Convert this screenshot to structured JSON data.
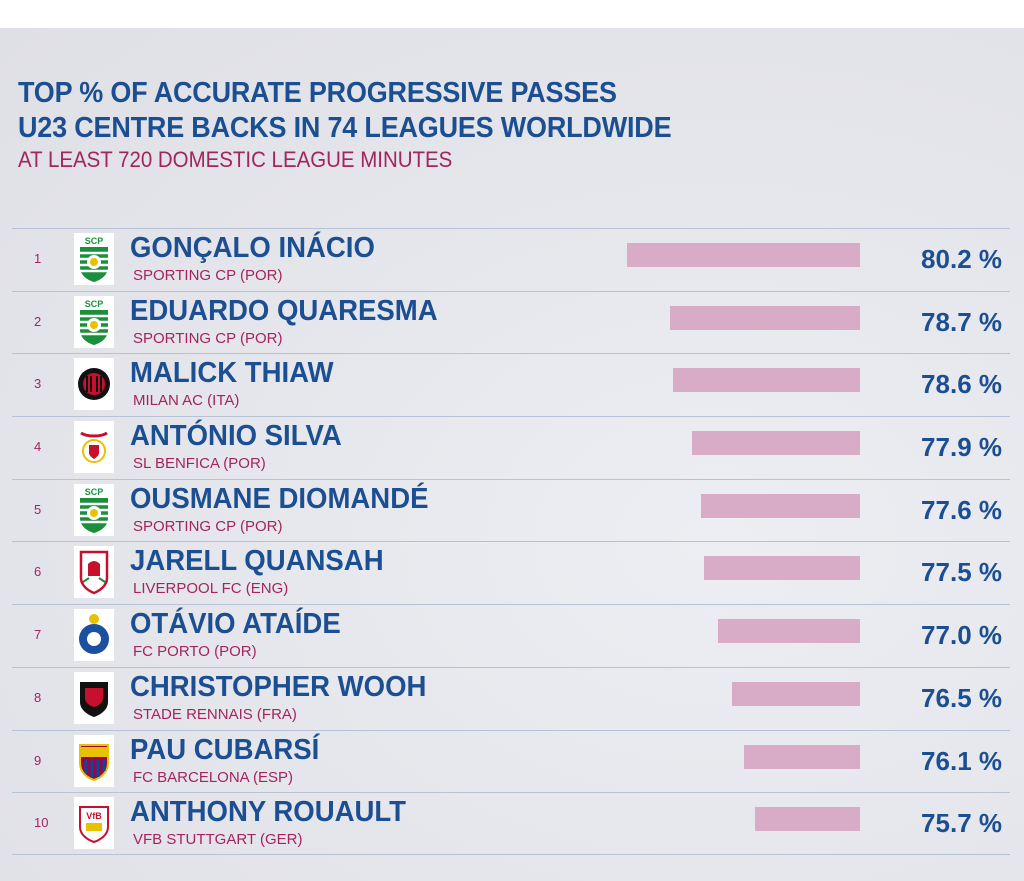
{
  "chart_data": {
    "type": "bar",
    "orientation": "horizontal",
    "title": "TOP % OF ACCURATE PROGRESSIVE PASSES",
    "title_line2": "U23 CENTRE BACKS IN 74 LEAGUES WORLDWIDE",
    "subtitle": "AT LEAST 720 DOMESTIC LEAGUE MINUTES",
    "xlim": [
      72,
      80.2
    ],
    "unit": "%",
    "colors": {
      "title": "#1b4f91",
      "subtitle": "#a3245e",
      "bar": "#d8abc6"
    },
    "rows": [
      {
        "rank": "1",
        "name": "GONÇALO INÁCIO",
        "club": "SPORTING CP (POR)",
        "value": 80.2,
        "label": "80.2 %",
        "logo": "sporting"
      },
      {
        "rank": "2",
        "name": "EDUARDO QUARESMA",
        "club": "SPORTING CP (POR)",
        "value": 78.7,
        "label": "78.7 %",
        "logo": "sporting"
      },
      {
        "rank": "3",
        "name": "MALICK THIAW",
        "club": "MILAN AC (ITA)",
        "value": 78.6,
        "label": "78.6 %",
        "logo": "milan"
      },
      {
        "rank": "4",
        "name": "ANTÓNIO SILVA",
        "club": "SL BENFICA (POR)",
        "value": 77.9,
        "label": "77.9 %",
        "logo": "benfica"
      },
      {
        "rank": "5",
        "name": "OUSMANE DIOMANDÉ",
        "club": "SPORTING CP (POR)",
        "value": 77.6,
        "label": "77.6 %",
        "logo": "sporting"
      },
      {
        "rank": "6",
        "name": "JARELL QUANSAH",
        "club": "LIVERPOOL FC (ENG)",
        "value": 77.5,
        "label": "77.5 %",
        "logo": "liverpool"
      },
      {
        "rank": "7",
        "name": "OTÁVIO ATAÍDE",
        "club": "FC PORTO (POR)",
        "value": 77.0,
        "label": "77.0 %",
        "logo": "porto"
      },
      {
        "rank": "8",
        "name": "CHRISTOPHER WOOH",
        "club": "STADE RENNAIS (FRA)",
        "value": 76.5,
        "label": "76.5 %",
        "logo": "rennes"
      },
      {
        "rank": "9",
        "name": "PAU CUBARSÍ",
        "club": "FC BARCELONA (ESP)",
        "value": 76.1,
        "label": "76.1 %",
        "logo": "barcelona"
      },
      {
        "rank": "10",
        "name": "ANTHONY ROUAULT",
        "club": "VFB STUTTGART (GER)",
        "value": 75.7,
        "label": "75.7 %",
        "logo": "stuttgart"
      }
    ]
  }
}
